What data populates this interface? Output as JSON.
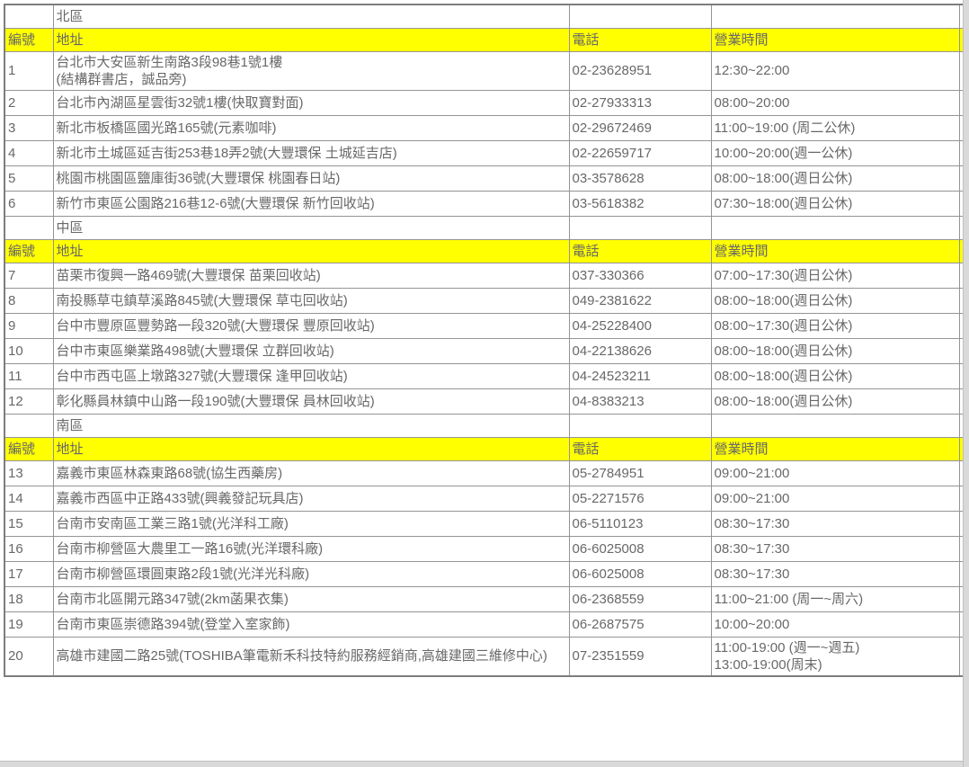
{
  "table": {
    "columns": [
      {
        "key": "id",
        "label": "編號"
      },
      {
        "key": "address",
        "label": "地址"
      },
      {
        "key": "phone",
        "label": "電話"
      },
      {
        "key": "hours",
        "label": "營業時間"
      }
    ],
    "colors": {
      "header_bg": "#ffff00",
      "border": "#949494",
      "text": "#686868",
      "scrollbar": "#d9d9d9"
    },
    "sections": [
      {
        "region": "北區",
        "rows": [
          {
            "id": "1",
            "address": "台北市大安區新生南路3段98巷1號1樓\n(結構群書店，誠品旁)",
            "phone": "02-23628951",
            "hours": "12:30~22:00"
          },
          {
            "id": "2",
            "address": "台北市內湖區星雲街32號1樓(快取寶對面)",
            "phone": "02-27933313",
            "hours": "08:00~20:00"
          },
          {
            "id": "3",
            "address": "新北市板橋區國光路165號(元素咖啡)",
            "phone": "02-29672469",
            "hours": "11:00~19:00 (周二公休)"
          },
          {
            "id": "4",
            "address": "新北市土城區延吉街253巷18弄2號(大豐環保 土城延吉店)",
            "phone": "02-22659717",
            "hours": "10:00~20:00(週一公休)"
          },
          {
            "id": "5",
            "address": "桃園市桃園區鹽庫街36號(大豐環保 桃園春日站)",
            "phone": "03-3578628",
            "hours": "08:00~18:00(週日公休)"
          },
          {
            "id": "6",
            "address": "新竹市東區公園路216巷12-6號(大豐環保 新竹回收站)",
            "phone": "03-5618382",
            "hours": "07:30~18:00(週日公休)"
          }
        ]
      },
      {
        "region": "中區",
        "rows": [
          {
            "id": "7",
            "address": "苗栗市復興一路469號(大豐環保 苗栗回收站)",
            "phone": "037-330366",
            "hours": "07:00~17:30(週日公休)"
          },
          {
            "id": "8",
            "address": "南投縣草屯鎮草溪路845號(大豐環保 草屯回收站)",
            "phone": "049-2381622",
            "hours": "08:00~18:00(週日公休)"
          },
          {
            "id": "9",
            "address": "台中市豐原區豐勢路一段320號(大豐環保 豐原回收站)",
            "phone": "04-25228400",
            "hours": "08:00~17:30(週日公休)"
          },
          {
            "id": "10",
            "address": "台中市東區樂業路498號(大豐環保 立群回收站)",
            "phone": "04-22138626",
            "hours": "08:00~18:00(週日公休)"
          },
          {
            "id": "11",
            "address": "台中市西屯區上墩路327號(大豐環保 逢甲回收站)",
            "phone": "04-24523211",
            "hours": "08:00~18:00(週日公休)"
          },
          {
            "id": "12",
            "address": "彰化縣員林鎮中山路一段190號(大豐環保 員林回收站)",
            "phone": "04-8383213",
            "hours": "08:00~18:00(週日公休)"
          }
        ]
      },
      {
        "region": "南區",
        "rows": [
          {
            "id": "13",
            "address": "嘉義市東區林森東路68號(協生西藥房)",
            "phone": "05-2784951",
            "hours": "09:00~21:00"
          },
          {
            "id": "14",
            "address": "嘉義市西區中正路433號(興義發記玩具店)",
            "phone": "05-2271576",
            "hours": "09:00~21:00"
          },
          {
            "id": "15",
            "address": "台南市安南區工業三路1號(光洋科工廠)",
            "phone": "06-5110123",
            "hours": "08:30~17:30"
          },
          {
            "id": "16",
            "address": "台南市柳營區大農里工一路16號(光洋環科廠)",
            "phone": "06-6025008",
            "hours": "08:30~17:30"
          },
          {
            "id": "17",
            "address": "台南市柳營區環圓東路2段1號(光洋光科廠)",
            "phone": "06-6025008",
            "hours": "08:30~17:30"
          },
          {
            "id": "18",
            "address": "台南市北區開元路347號(2km菡果衣集)",
            "phone": "06-2368559",
            "hours": "11:00~21:00 (周一~周六)"
          },
          {
            "id": "19",
            "address": "台南市東區崇德路394號(登堂入室家飾)",
            "phone": "06-2687575",
            "hours": "10:00~20:00"
          },
          {
            "id": "20",
            "address": "高雄市建國二路25號(TOSHIBA筆電新禾科技特約服務經銷商,高雄建國三維修中心)",
            "phone": "07-2351559",
            "hours": "11:00-19:00 (週一~週五)\n13:00-19:00(周末)"
          }
        ]
      }
    ]
  }
}
